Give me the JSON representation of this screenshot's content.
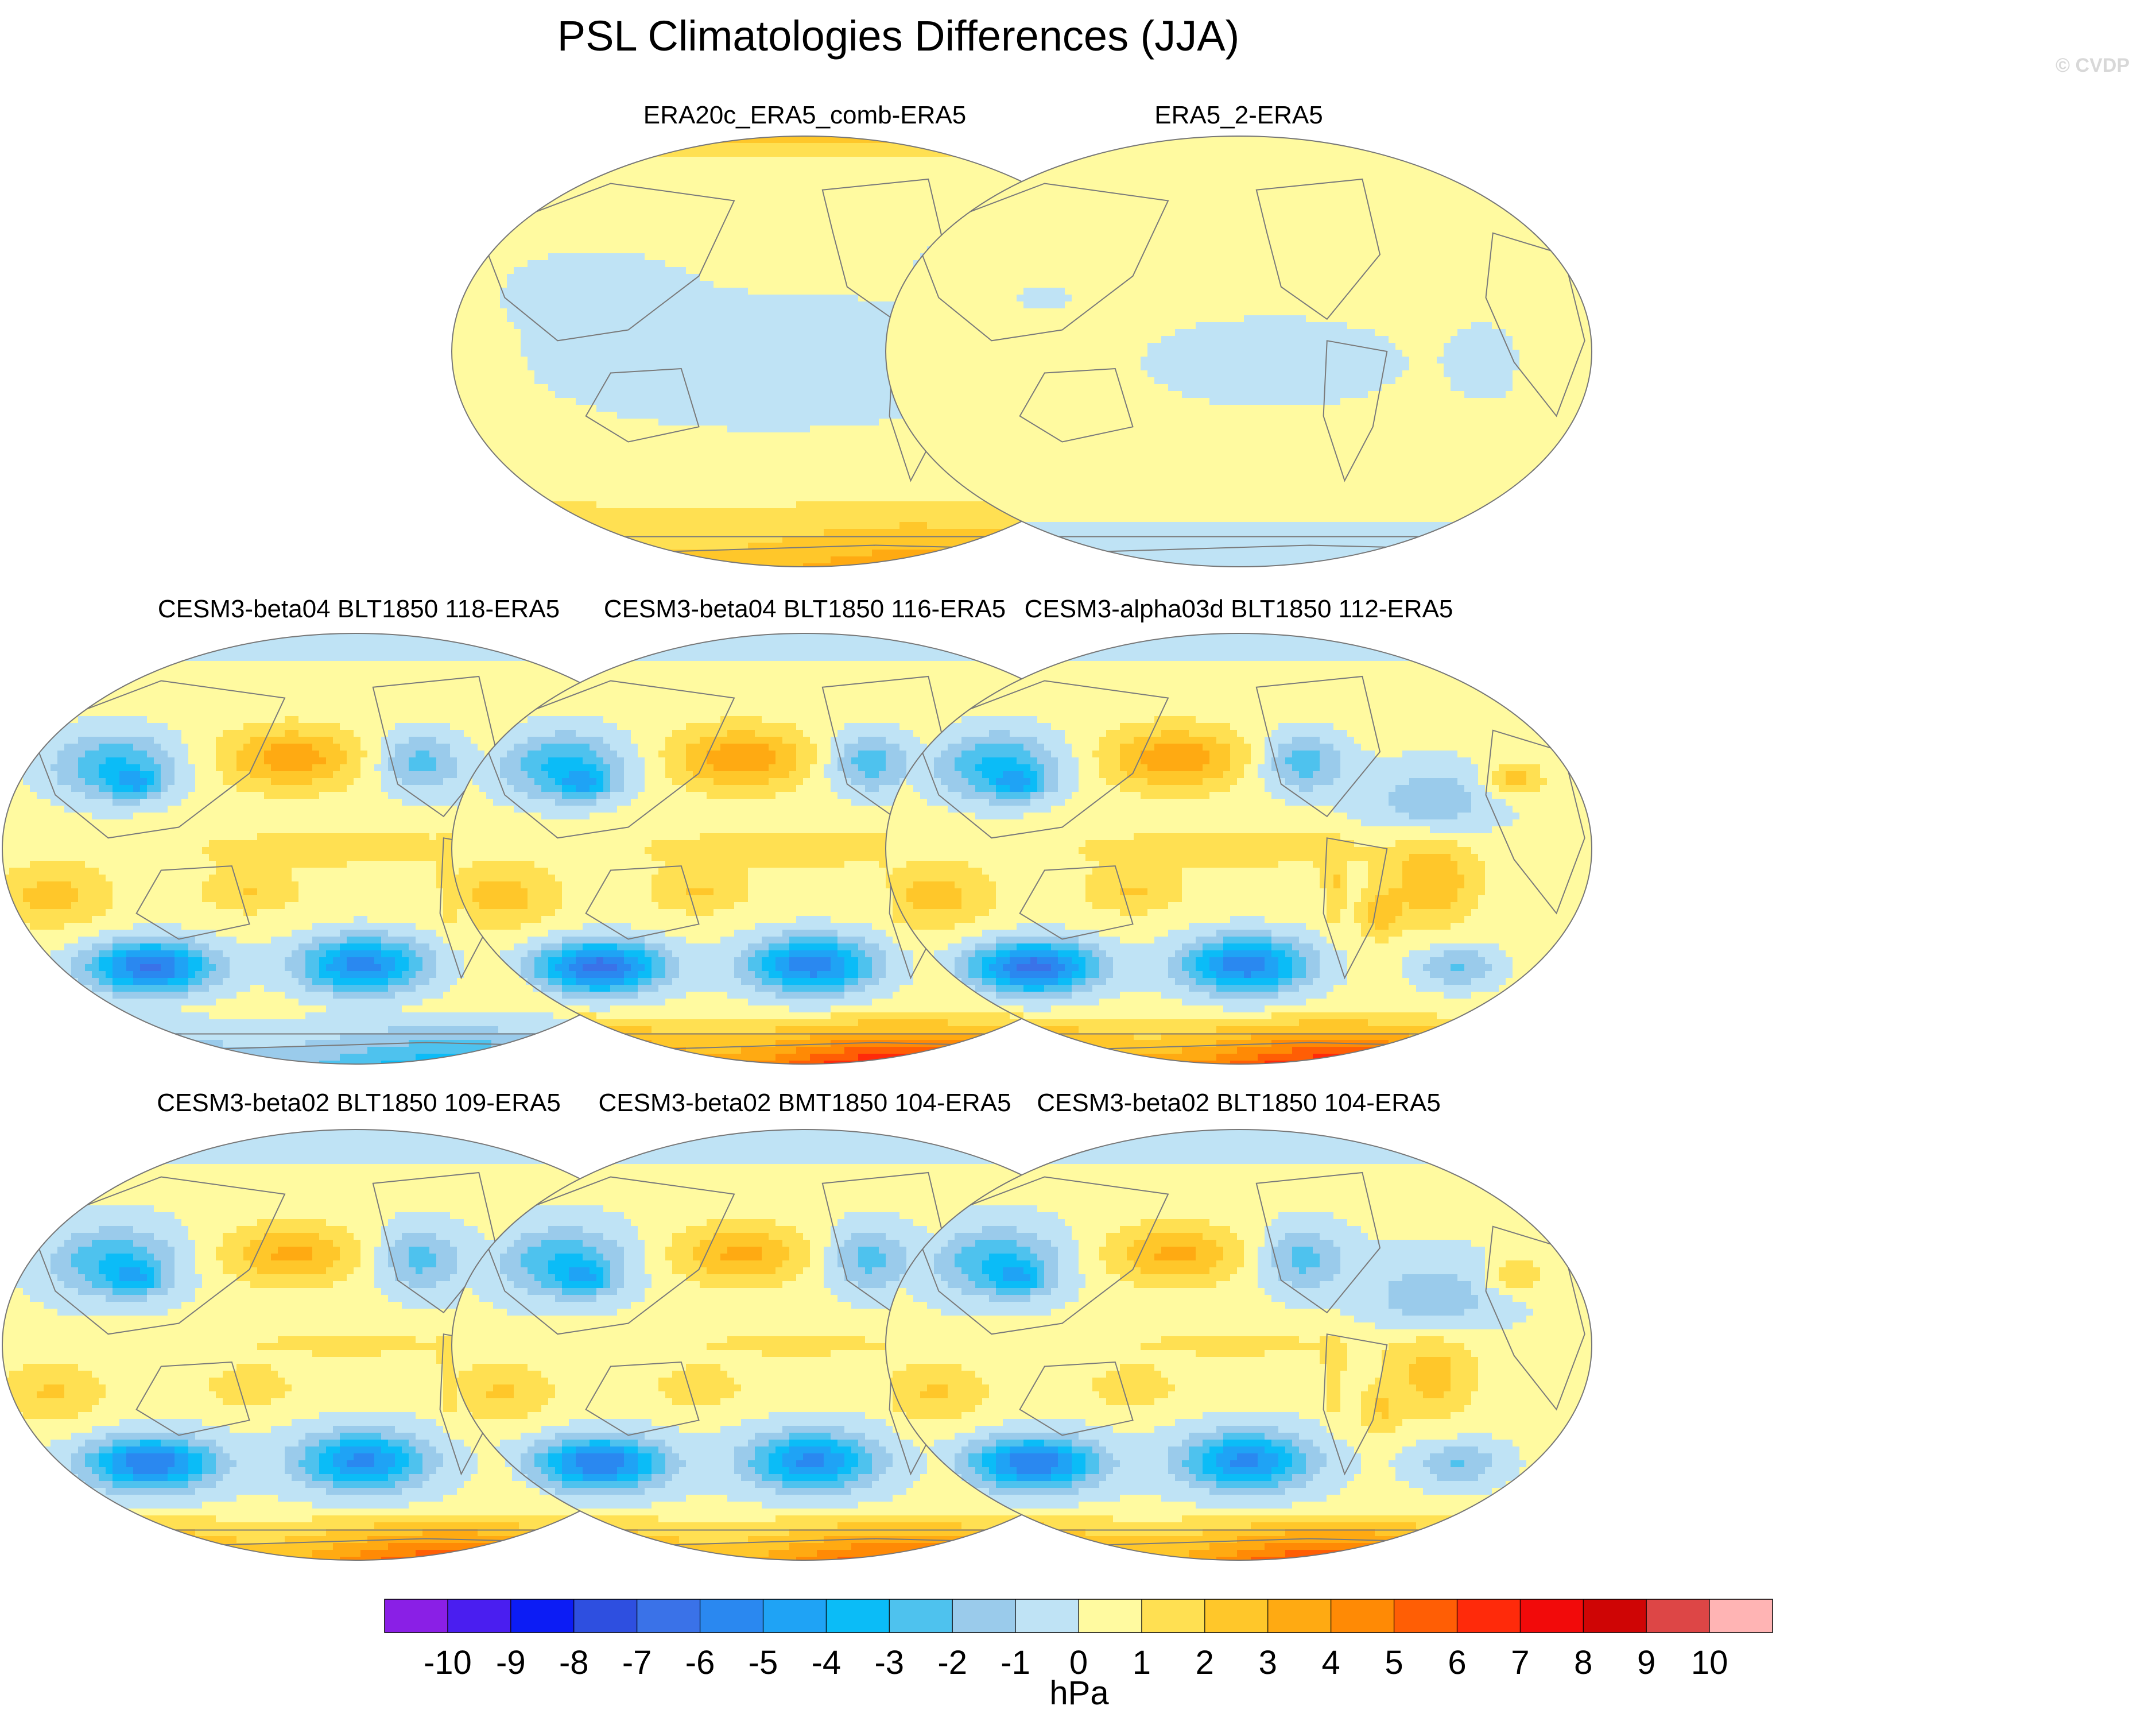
{
  "title": "PSL Climatologies Differences (JJA)",
  "watermark": "© CVDP",
  "panels": [
    {
      "id": "era20c",
      "title": "ERA20c_ERA5_comb-ERA5",
      "row": 0,
      "col": 1,
      "base": 0.5,
      "intensity": 0.12,
      "south_band": 2.6,
      "arctic": 2.0,
      "pattern": "reanalysis_a"
    },
    {
      "id": "era5_2",
      "title": "ERA5_2-ERA5",
      "row": 0,
      "col": 2,
      "base": 0.6,
      "intensity": 0.08,
      "south_band": -1.4,
      "arctic": 0.5,
      "pattern": "reanalysis_b"
    },
    {
      "id": "b04_118",
      "title": "CESM3-beta04 BLT1850 118-ERA5",
      "row": 1,
      "col": 0,
      "base": 0.4,
      "intensity": 1.0,
      "south_band": -3.0,
      "arctic": -1.0,
      "pattern": "model"
    },
    {
      "id": "b04_116",
      "title": "CESM3-beta04 BLT1850 116-ERA5",
      "row": 1,
      "col": 1,
      "base": 0.4,
      "intensity": 1.05,
      "south_band": 5.0,
      "arctic": -1.0,
      "pattern": "model"
    },
    {
      "id": "a03d_112",
      "title": "CESM3-alpha03d BLT1850 112-ERA5",
      "row": 1,
      "col": 2,
      "base": 0.4,
      "intensity": 1.05,
      "south_band": 4.8,
      "arctic": -1.0,
      "pattern": "model"
    },
    {
      "id": "b02_109",
      "title": "CESM3-beta02 BLT1850 109-ERA5",
      "row": 2,
      "col": 0,
      "base": 0.2,
      "intensity": 0.95,
      "south_band": 4.2,
      "arctic": -1.2,
      "pattern": "model"
    },
    {
      "id": "b02_bmt104",
      "title": "CESM3-beta02 BMT1850 104-ERA5",
      "row": 2,
      "col": 1,
      "base": 0.2,
      "intensity": 0.95,
      "south_band": 4.0,
      "arctic": -1.2,
      "pattern": "model"
    },
    {
      "id": "b02_104",
      "title": "CESM3-beta02 BLT1850 104-ERA5",
      "row": 2,
      "col": 2,
      "base": 0.2,
      "intensity": 0.95,
      "south_band": 4.4,
      "arctic": -1.2,
      "pattern": "model"
    }
  ],
  "colorbar": {
    "unit": "hPa",
    "labels": [
      "-10",
      "-9",
      "-8",
      "-7",
      "-6",
      "-5",
      "-4",
      "-3",
      "-2",
      "-1",
      "0",
      "1",
      "2",
      "3",
      "4",
      "5",
      "6",
      "7",
      "8",
      "9",
      "10"
    ],
    "colors": [
      "#8a1fe6",
      "#4a1ef0",
      "#0c1cf5",
      "#2e4fe0",
      "#3a72e8",
      "#2a88f0",
      "#1fa3f5",
      "#0bbcf7",
      "#4ec2ee",
      "#9acbeb",
      "#bfe3f5",
      "#fffaa0",
      "#ffe052",
      "#ffc72a",
      "#ffaa12",
      "#ff8a05",
      "#ff5e05",
      "#ff2a0a",
      "#f20a0a",
      "#cf0505",
      "#dd4646",
      "#ffb4b4"
    ]
  }
}
